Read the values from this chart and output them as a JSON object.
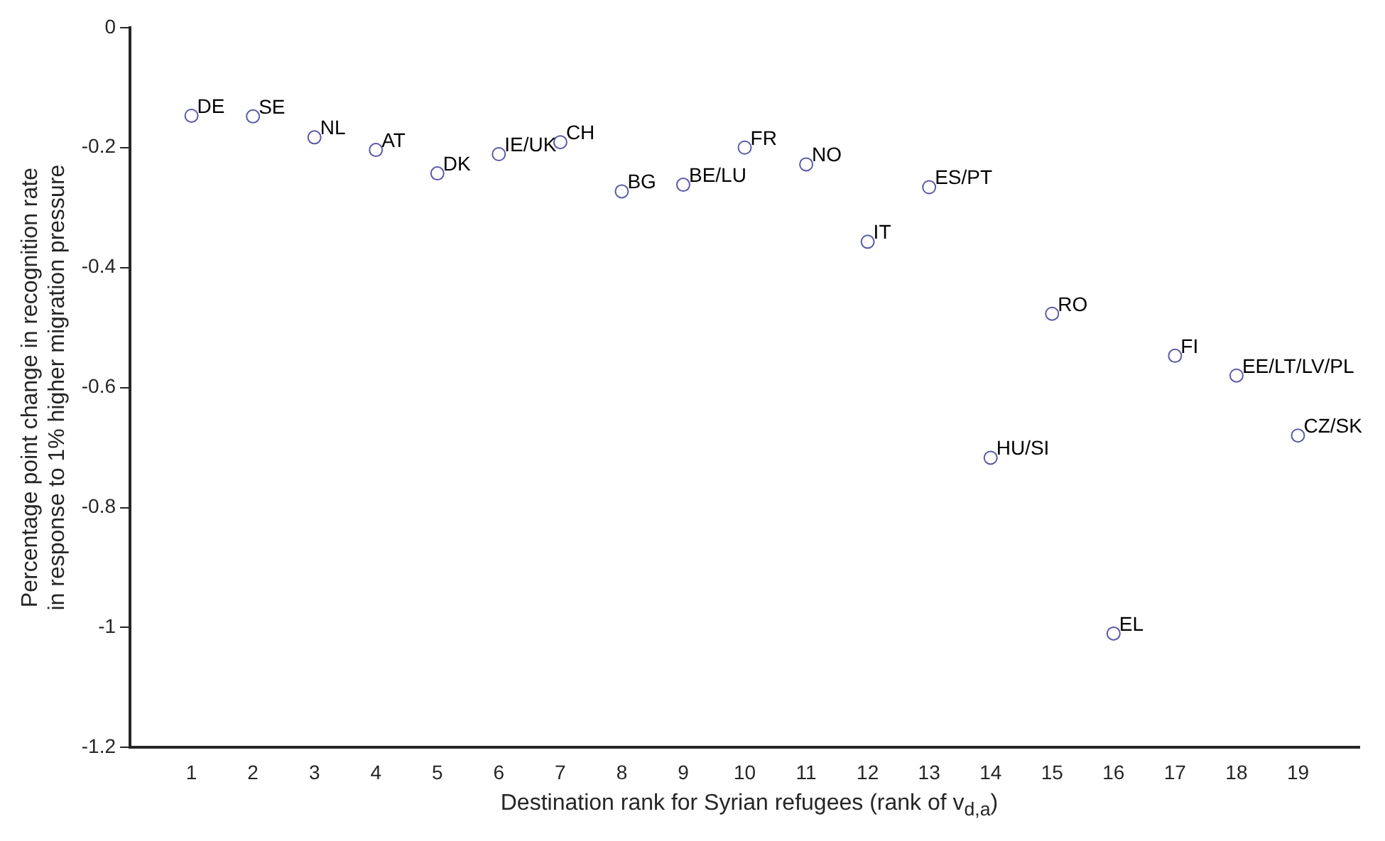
{
  "chart_data": {
    "type": "scatter",
    "xlabel": "Destination rank for Syrian refugees (rank of v$_{d,a}$)",
    "ylabel": "Percentage point change in recognition rate\nin response to 1% higher migration pressure",
    "x": [
      1,
      2,
      3,
      4,
      5,
      6,
      7,
      8,
      9,
      10,
      11,
      12,
      13,
      14,
      15,
      16,
      17,
      18,
      19
    ],
    "series": [
      {
        "color": "#5a5aa8",
        "values": [
          -0.147,
          -0.148,
          -0.183,
          -0.204,
          -0.243,
          -0.211,
          -0.191,
          -0.273,
          -0.262,
          -0.2,
          -0.228,
          -0.357,
          -0.266,
          -0.717,
          -0.477,
          -1.01,
          -0.547,
          -0.58,
          -0.68
        ]
      }
    ],
    "xlim": [
      0,
      20
    ],
    "xticks": [
      1,
      2,
      3,
      4,
      5,
      6,
      7,
      8,
      9,
      10,
      11,
      12,
      13,
      14,
      15,
      16,
      17,
      18,
      19
    ],
    "ylim": [
      -1.2,
      0
    ],
    "yticks": [
      -1.2,
      -1,
      -0.8,
      -0.6,
      -0.4,
      -0.2,
      0
    ],
    "grid": false,
    "legend": false,
    "marker": "circle",
    "annotations": [
      {
        "text": "DE",
        "x": 1,
        "y": -0.147
      },
      {
        "text": "SE",
        "x": 2,
        "y": -0.148
      },
      {
        "text": "NL",
        "x": 3,
        "y": -0.183
      },
      {
        "text": "AT",
        "x": 4,
        "y": -0.204
      },
      {
        "text": "DK",
        "x": 5,
        "y": -0.243
      },
      {
        "text": "IE/UK",
        "x": 6,
        "y": -0.211
      },
      {
        "text": "CH",
        "x": 7,
        "y": -0.191
      },
      {
        "text": "BG",
        "x": 8,
        "y": -0.273
      },
      {
        "text": "BE/LU",
        "x": 9,
        "y": -0.262
      },
      {
        "text": "FR",
        "x": 10,
        "y": -0.2
      },
      {
        "text": "NO",
        "x": 11,
        "y": -0.228
      },
      {
        "text": "IT",
        "x": 12,
        "y": -0.357
      },
      {
        "text": "ES/PT",
        "x": 13,
        "y": -0.266
      },
      {
        "text": "HU/SI",
        "x": 14,
        "y": -0.717
      },
      {
        "text": "RO",
        "x": 15,
        "y": -0.477
      },
      {
        "text": "EL",
        "x": 16,
        "y": -1.01
      },
      {
        "text": "FI",
        "x": 17,
        "y": -0.547
      },
      {
        "text": "EE/LT/LV/PL",
        "x": 18,
        "y": -0.58
      },
      {
        "text": "CZ/SK",
        "x": 19,
        "y": -0.68
      }
    ]
  }
}
